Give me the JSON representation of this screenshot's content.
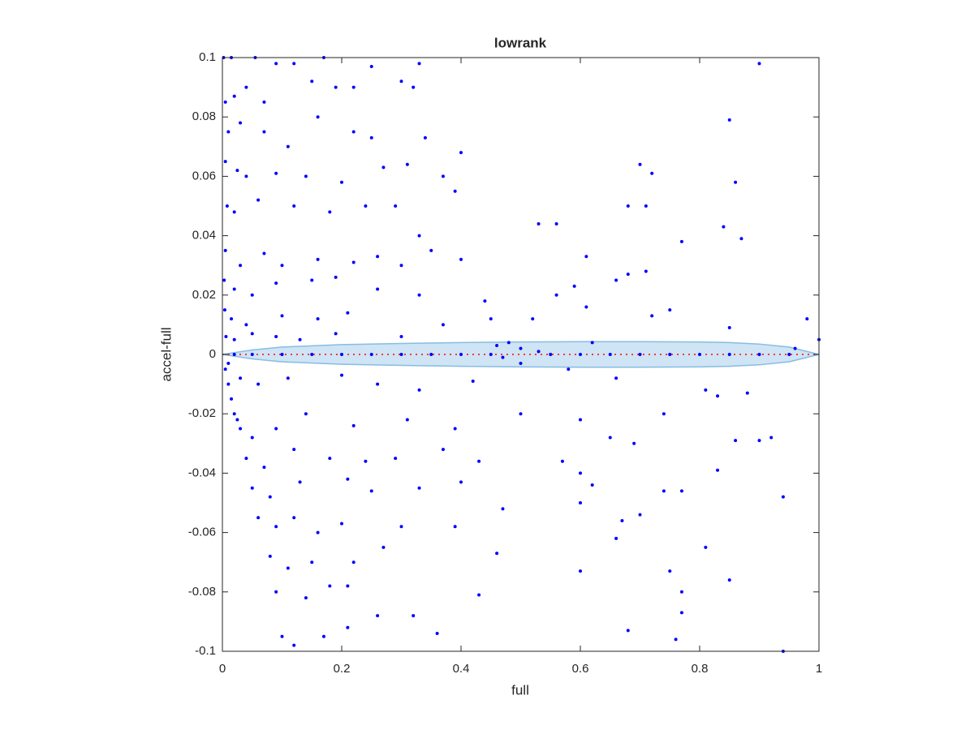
{
  "chart_data": {
    "type": "scatter",
    "title": "lowrank",
    "x_label": "full",
    "y_label": "accel-full",
    "color": "#0000ff",
    "x": [
      0.002,
      0.015,
      0.055,
      0.09,
      0.12,
      0.17,
      0.33,
      0.25,
      0.9,
      0.005,
      0.02,
      0.04,
      0.07,
      0.15,
      0.19,
      0.3,
      0.32,
      0.22,
      0.85,
      0.01,
      0.03,
      0.07,
      0.11,
      0.16,
      0.22,
      0.25,
      0.34,
      0.4,
      0.7,
      0.72,
      0.86,
      0.005,
      0.025,
      0.04,
      0.09,
      0.14,
      0.2,
      0.27,
      0.31,
      0.37,
      0.39,
      0.008,
      0.02,
      0.06,
      0.12,
      0.18,
      0.24,
      0.29,
      0.33,
      0.53,
      0.56,
      0.68,
      0.71,
      0.84,
      0.87,
      0.77,
      0.005,
      0.03,
      0.07,
      0.1,
      0.16,
      0.22,
      0.26,
      0.3,
      0.35,
      0.4,
      0.61,
      0.003,
      0.02,
      0.05,
      0.09,
      0.15,
      0.19,
      0.26,
      0.33,
      0.44,
      0.66,
      0.68,
      0.71,
      0.59,
      0.004,
      0.015,
      0.04,
      0.1,
      0.16,
      0.21,
      0.37,
      0.45,
      0.52,
      0.56,
      0.61,
      0.72,
      0.75,
      0.98,
      0.85,
      0.006,
      0.02,
      0.05,
      0.09,
      0.13,
      0.19,
      0.3,
      0.46,
      0.48,
      0.5,
      0.47,
      0.5,
      0.53,
      0.62,
      0.96,
      1,
      0.02,
      0.05,
      0.1,
      0.15,
      0.2,
      0.25,
      0.3,
      0.35,
      0.4,
      0.45,
      0.55,
      0.6,
      0.65,
      0.7,
      0.75,
      0.8,
      0.85,
      0.9,
      0.95,
      0.005,
      0.01,
      0.015,
      0.02,
      0.025,
      0.01,
      0.03,
      0.06,
      0.11,
      0.2,
      0.26,
      0.33,
      0.42,
      0.58,
      0.66,
      0.81,
      0.83,
      0.88,
      0.03,
      0.05,
      0.09,
      0.14,
      0.22,
      0.31,
      0.39,
      0.5,
      0.6,
      0.65,
      0.74,
      0.04,
      0.07,
      0.12,
      0.18,
      0.24,
      0.29,
      0.37,
      0.43,
      0.57,
      0.69,
      0.86,
      0.9,
      0.92,
      0.05,
      0.08,
      0.13,
      0.21,
      0.25,
      0.33,
      0.4,
      0.6,
      0.62,
      0.83,
      0.74,
      0.77,
      0.94,
      0.06,
      0.09,
      0.12,
      0.16,
      0.2,
      0.3,
      0.39,
      0.47,
      0.6,
      0.66,
      0.67,
      0.7,
      0.08,
      0.11,
      0.15,
      0.22,
      0.27,
      0.46,
      0.81,
      0.09,
      0.14,
      0.18,
      0.21,
      0.43,
      0.6,
      0.75,
      0.77,
      0.85,
      0.1,
      0.12,
      0.17,
      0.21,
      0.26,
      0.32,
      0.36,
      0.68,
      0.76,
      0.77,
      0.94
    ],
    "values": [
      0.1,
      0.1,
      0.1,
      0.098,
      0.098,
      0.1,
      0.098,
      0.097,
      0.098,
      0.085,
      0.087,
      0.09,
      0.085,
      0.092,
      0.09,
      0.092,
      0.09,
      0.09,
      0.079,
      0.075,
      0.078,
      0.075,
      0.07,
      0.08,
      0.075,
      0.073,
      0.073,
      0.068,
      0.064,
      0.061,
      0.058,
      0.065,
      0.062,
      0.06,
      0.061,
      0.06,
      0.058,
      0.063,
      0.064,
      0.06,
      0.055,
      0.05,
      0.048,
      0.052,
      0.05,
      0.048,
      0.05,
      0.05,
      0.04,
      0.044,
      0.044,
      0.05,
      0.05,
      0.043,
      0.039,
      0.038,
      0.035,
      0.03,
      0.034,
      0.03,
      0.032,
      0.031,
      0.033,
      0.03,
      0.035,
      0.032,
      0.033,
      0.025,
      0.022,
      0.02,
      0.024,
      0.025,
      0.026,
      0.022,
      0.02,
      0.018,
      0.025,
      0.027,
      0.028,
      0.023,
      0.015,
      0.012,
      0.01,
      0.013,
      0.012,
      0.014,
      0.01,
      0.012,
      0.012,
      0.02,
      0.016,
      0.013,
      0.015,
      0.012,
      0.009,
      0.006,
      0.005,
      0.007,
      0.006,
      0.005,
      0.007,
      0.006,
      0.003,
      0.004,
      0.002,
      -0.001,
      -0.003,
      0.001,
      0.004,
      0.002,
      0.005,
      0,
      0,
      0,
      0,
      0,
      0,
      0,
      0,
      0,
      0,
      0,
      0,
      0,
      0,
      0,
      0,
      0,
      0,
      0,
      -0.005,
      -0.01,
      -0.015,
      -0.02,
      -0.022,
      -0.003,
      -0.008,
      -0.01,
      -0.008,
      -0.007,
      -0.01,
      -0.012,
      -0.009,
      -0.005,
      -0.008,
      -0.012,
      -0.014,
      -0.013,
      -0.025,
      -0.028,
      -0.025,
      -0.02,
      -0.024,
      -0.022,
      -0.025,
      -0.02,
      -0.022,
      -0.028,
      -0.02,
      -0.035,
      -0.038,
      -0.032,
      -0.035,
      -0.036,
      -0.035,
      -0.032,
      -0.036,
      -0.036,
      -0.03,
      -0.029,
      -0.029,
      -0.028,
      -0.045,
      -0.048,
      -0.043,
      -0.042,
      -0.046,
      -0.045,
      -0.043,
      -0.04,
      -0.044,
      -0.039,
      -0.046,
      -0.046,
      -0.048,
      -0.055,
      -0.058,
      -0.055,
      -0.06,
      -0.057,
      -0.058,
      -0.058,
      -0.052,
      -0.05,
      -0.062,
      -0.056,
      -0.054,
      -0.068,
      -0.072,
      -0.07,
      -0.07,
      -0.065,
      -0.067,
      -0.065,
      -0.08,
      -0.082,
      -0.078,
      -0.078,
      -0.081,
      -0.073,
      -0.073,
      -0.08,
      -0.076,
      -0.095,
      -0.098,
      -0.095,
      -0.092,
      -0.088,
      -0.088,
      -0.094,
      -0.093,
      -0.096,
      -0.087,
      -0.1
    ],
    "band": {
      "x": [
        0,
        0.05,
        0.1,
        0.2,
        0.3,
        0.4,
        0.5,
        0.6,
        0.7,
        0.8,
        0.85,
        0.9,
        0.95,
        1
      ],
      "upper": [
        0,
        0.0015,
        0.0025,
        0.0033,
        0.0037,
        0.004,
        0.0042,
        0.0043,
        0.0043,
        0.0042,
        0.004,
        0.0035,
        0.0025,
        0
      ],
      "lower": [
        0,
        -0.0015,
        -0.0025,
        -0.0033,
        -0.0037,
        -0.004,
        -0.0042,
        -0.0043,
        -0.0043,
        -0.0042,
        -0.004,
        -0.0035,
        -0.0025,
        0
      ],
      "color": "#cfe4f4",
      "edge_color": "#86bde3"
    },
    "reference_line": {
      "y": 0,
      "color": "#ff0000"
    },
    "xlim": [
      0,
      1
    ],
    "ylim": [
      -0.1,
      0.1
    ],
    "xticks": [
      0,
      0.2,
      0.4,
      0.6,
      0.8,
      1
    ],
    "yticks": [
      -0.1,
      -0.08,
      -0.06,
      -0.04,
      -0.02,
      0,
      0.02,
      0.04,
      0.06,
      0.08,
      0.1
    ],
    "grid": false
  }
}
